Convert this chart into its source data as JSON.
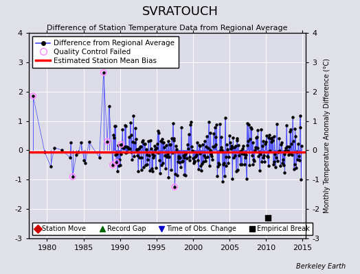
{
  "title": "SVRATOUCH",
  "subtitle": "Difference of Station Temperature Data from Regional Average",
  "ylabel": "Monthly Temperature Anomaly Difference (°C)",
  "xlabel_ticks": [
    1980,
    1985,
    1990,
    1995,
    2000,
    2005,
    2010,
    2015
  ],
  "ylim": [
    -3,
    4
  ],
  "yticks": [
    -3,
    -2,
    -1,
    0,
    1,
    2,
    3,
    4
  ],
  "xlim": [
    1977.5,
    2015.5
  ],
  "bias_line_y": -0.05,
  "bias_color": "#ff0000",
  "line_color": "#4444ff",
  "marker_color": "#000000",
  "qc_color": "#ff88ff",
  "background_color": "#e0e0e8",
  "plot_bg_color": "#dcdce8",
  "grid_color": "#ffffff",
  "empirical_break_x": 2010.3,
  "empirical_break_y": -2.3,
  "berkeley_earth_text": "Berkeley Earth",
  "years_start": 1978,
  "years_end": 2014,
  "random_seed": 77,
  "spike_year": 1987.75,
  "spike_val": 2.65,
  "spike2_year": 1988.5,
  "spike2_val": 1.5,
  "early_qc_year": 1978.08,
  "early_qc_val": 1.85,
  "early_qc2_year": 1983.5,
  "early_qc2_val": -0.9
}
